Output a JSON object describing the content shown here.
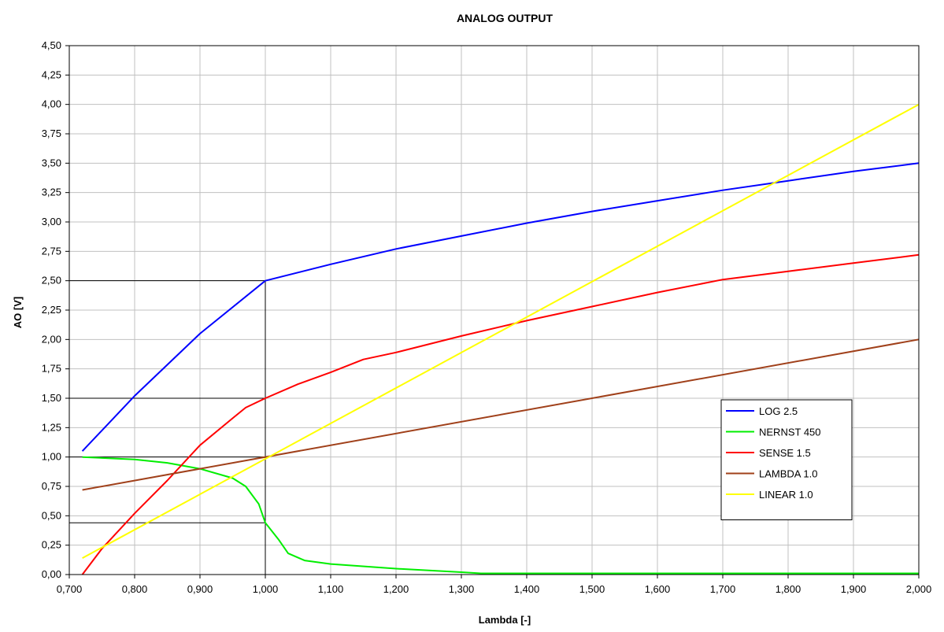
{
  "chart_data": {
    "type": "line",
    "title": "ANALOG OUTPUT",
    "xlabel": "Lambda [-]",
    "ylabel": "AO [V]",
    "xlim": [
      0.7,
      2.0
    ],
    "ylim": [
      0,
      4.5
    ],
    "x_ticks": [
      "0,700",
      "0,800",
      "0,900",
      "1,000",
      "1,100",
      "1,200",
      "1,300",
      "1,400",
      "1,500",
      "1,600",
      "1,700",
      "1,800",
      "1,900",
      "2,000"
    ],
    "y_ticks": [
      "0,00",
      "0,25",
      "0,50",
      "0,75",
      "1,00",
      "1,25",
      "1,50",
      "1,75",
      "2,00",
      "2,25",
      "2,50",
      "2,75",
      "3,00",
      "3,25",
      "3,50",
      "3,75",
      "4,00",
      "4,25",
      "4,50"
    ],
    "grid": true,
    "legend_position": "right",
    "series": [
      {
        "name": "LOG 2.5",
        "color": "#0000ff",
        "points": [
          [
            0.72,
            1.05
          ],
          [
            0.8,
            1.52
          ],
          [
            0.9,
            2.05
          ],
          [
            1.0,
            2.5
          ],
          [
            1.1,
            2.64
          ],
          [
            1.2,
            2.77
          ],
          [
            1.3,
            2.88
          ],
          [
            1.4,
            2.99
          ],
          [
            1.5,
            3.09
          ],
          [
            1.6,
            3.18
          ],
          [
            1.7,
            3.27
          ],
          [
            1.8,
            3.35
          ],
          [
            1.9,
            3.43
          ],
          [
            2.0,
            3.5
          ]
        ]
      },
      {
        "name": "NERNST 450",
        "color": "#00ee00",
        "points": [
          [
            0.72,
            1.0
          ],
          [
            0.8,
            0.98
          ],
          [
            0.85,
            0.95
          ],
          [
            0.9,
            0.9
          ],
          [
            0.95,
            0.82
          ],
          [
            0.97,
            0.75
          ],
          [
            0.99,
            0.6
          ],
          [
            1.0,
            0.44
          ],
          [
            1.02,
            0.3
          ],
          [
            1.035,
            0.18
          ],
          [
            1.06,
            0.12
          ],
          [
            1.1,
            0.09
          ],
          [
            1.2,
            0.05
          ],
          [
            1.3,
            0.02
          ],
          [
            1.33,
            0.01
          ],
          [
            2.0,
            0.01
          ]
        ]
      },
      {
        "name": "SENSE 1.5",
        "color": "#ff0000",
        "points": [
          [
            0.72,
            0.0
          ],
          [
            0.75,
            0.22
          ],
          [
            0.8,
            0.52
          ],
          [
            0.85,
            0.8
          ],
          [
            0.9,
            1.1
          ],
          [
            0.95,
            1.33
          ],
          [
            0.97,
            1.42
          ],
          [
            1.0,
            1.5
          ],
          [
            1.05,
            1.62
          ],
          [
            1.1,
            1.72
          ],
          [
            1.15,
            1.83
          ],
          [
            1.2,
            1.89
          ],
          [
            1.3,
            2.03
          ],
          [
            1.4,
            2.16
          ],
          [
            1.5,
            2.28
          ],
          [
            1.6,
            2.4
          ],
          [
            1.7,
            2.51
          ],
          [
            1.8,
            2.58
          ],
          [
            1.9,
            2.65
          ],
          [
            2.0,
            2.72
          ]
        ]
      },
      {
        "name": "LAMBDA 1.0",
        "color": "#a0401a",
        "points": [
          [
            0.72,
            0.72
          ],
          [
            2.0,
            2.0
          ]
        ]
      },
      {
        "name": "LINEAR 1.0",
        "color": "#ffff00",
        "points": [
          [
            0.72,
            0.14
          ],
          [
            2.0,
            4.0
          ]
        ]
      }
    ]
  }
}
